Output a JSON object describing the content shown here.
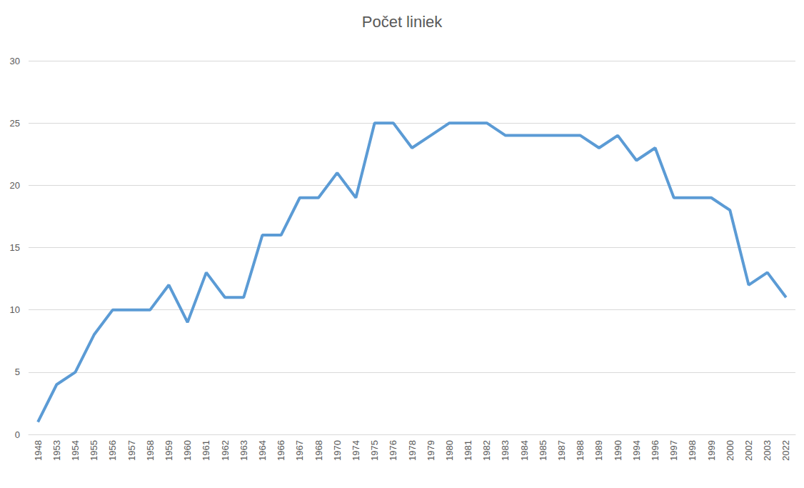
{
  "chart_data": {
    "type": "line",
    "title": "Počet liniek",
    "categories": [
      "1948",
      "1953",
      "1954",
      "1955",
      "1956",
      "1957",
      "1958",
      "1959",
      "1960",
      "1961",
      "1962",
      "1963",
      "1964",
      "1966",
      "1967",
      "1968",
      "1970",
      "1974",
      "1975",
      "1976",
      "1978",
      "1979",
      "1980",
      "1981",
      "1982",
      "1983",
      "1984",
      "1985",
      "1987",
      "1988",
      "1989",
      "1990",
      "1994",
      "1996",
      "1997",
      "1998",
      "1999",
      "2000",
      "2002",
      "2003",
      "2022"
    ],
    "values": [
      1,
      4,
      5,
      8,
      10,
      10,
      10,
      12,
      9,
      13,
      11,
      11,
      16,
      16,
      19,
      19,
      21,
      19,
      25,
      25,
      23,
      24,
      25,
      25,
      25,
      24,
      24,
      24,
      24,
      24,
      23,
      24,
      22,
      23,
      19,
      19,
      19,
      18,
      12,
      13,
      11
    ],
    "color": "#5b9bd5",
    "ylim": [
      0,
      30
    ],
    "yticks": [
      0,
      5,
      10,
      15,
      20,
      25,
      30
    ],
    "grid": true
  }
}
